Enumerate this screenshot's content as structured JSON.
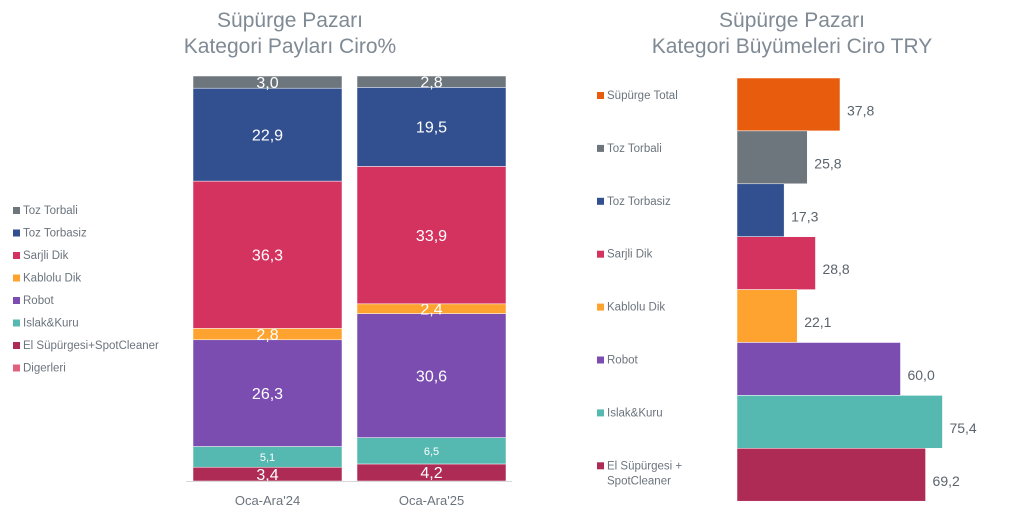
{
  "chart_data": [
    {
      "type": "bar",
      "stacked": true,
      "orientation": "vertical",
      "title": [
        "Süpürge Pazarı",
        "Kategori Payları Ciro%"
      ],
      "xlabel": "",
      "ylabel": "",
      "categories": [
        "Oca-Ara'24",
        "Oca-Ara'25"
      ],
      "legend_position": "left",
      "grid": false,
      "stack_order_bottom_to_top": [
        "Digerleri",
        "El Süpürgesi+SpotCleaner",
        "Islak&Kuru",
        "Robot",
        "Kablolu Dik",
        "Sarjli Dik",
        "Toz Torbasiz",
        "Toz Torbali"
      ],
      "series": [
        {
          "name": "Toz Torbali",
          "color": "#6d767d",
          "values": [
            3.0,
            2.8
          ],
          "labels": [
            "3,0",
            "2,8"
          ]
        },
        {
          "name": "Toz Torbasiz",
          "color": "#324f90",
          "values": [
            22.9,
            19.5
          ],
          "labels": [
            "22,9",
            "19,5"
          ]
        },
        {
          "name": "Sarjli Dik",
          "color": "#d5335f",
          "values": [
            36.3,
            33.9
          ],
          "labels": [
            "36,3",
            "33,9"
          ]
        },
        {
          "name": "Kablolu Dik",
          "color": "#fea32f",
          "values": [
            2.8,
            2.4
          ],
          "labels": [
            "2,8",
            "2,4"
          ]
        },
        {
          "name": "Robot",
          "color": "#7b4db0",
          "values": [
            26.3,
            30.6
          ],
          "labels": [
            "26,3",
            "30,6"
          ]
        },
        {
          "name": "Islak&Kuru",
          "color": "#56b9b1",
          "values": [
            5.1,
            6.5
          ],
          "labels": [
            "5,1",
            "6,5"
          ]
        },
        {
          "name": "El Süpürgesi+SpotCleaner",
          "color": "#ad2b54",
          "values": [
            3.4,
            4.2
          ],
          "labels": [
            "3,4",
            "4,2"
          ]
        },
        {
          "name": "Digerleri",
          "color": "#e0607e",
          "values": [
            0,
            0
          ],
          "labels": [
            "",
            ""
          ]
        }
      ],
      "ylim": [
        0,
        100
      ]
    },
    {
      "type": "bar",
      "orientation": "horizontal",
      "title": [
        "Süpürge Pazarı",
        "Kategori Büyümeleri Ciro TRY"
      ],
      "xlabel": "",
      "ylabel": "",
      "legend_position": "left",
      "grid": false,
      "categories": [
        "Süpürge Total",
        "Toz Torbali",
        "Toz Torbasiz",
        "Sarjli Dik",
        "Kablolu Dik",
        "Robot",
        "Islak&Kuru",
        "El Süpürgesi + SpotCleaner"
      ],
      "category_lines": [
        [
          "Süpürge Total"
        ],
        [
          "Toz Torbali"
        ],
        [
          "Toz Torbasiz"
        ],
        [
          "Sarjli Dik"
        ],
        [
          "Kablolu Dik"
        ],
        [
          "Robot"
        ],
        [
          "Islak&Kuru"
        ],
        [
          "El Süpürgesi +",
          "SpotCleaner"
        ]
      ],
      "values": [
        37.8,
        25.8,
        17.3,
        28.8,
        22.1,
        60.0,
        75.4,
        69.2
      ],
      "labels": [
        "37,8",
        "25,8",
        "17,3",
        "28,8",
        "22,1",
        "60,0",
        "75,4",
        "69,2"
      ],
      "colors": [
        "#e85c0d",
        "#6d767d",
        "#324f90",
        "#d5335f",
        "#fea32f",
        "#7b4db0",
        "#56b9b1",
        "#ad2b54"
      ],
      "xlim": [
        0,
        80
      ]
    }
  ]
}
